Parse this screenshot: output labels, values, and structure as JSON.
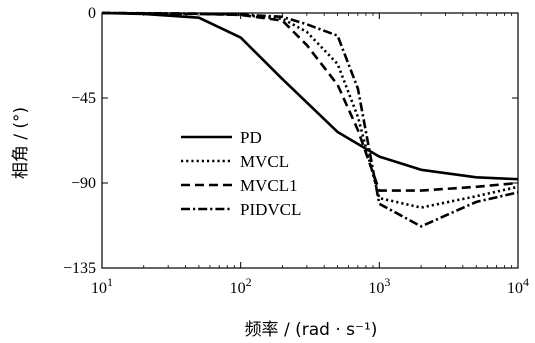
{
  "chart_data": {
    "type": "line",
    "title": "",
    "xlabel": "频率 / (rad · s⁻¹)",
    "ylabel": "相角 / (°)",
    "xscale": "log",
    "xlim": [
      10,
      10000
    ],
    "ylim": [
      -135,
      0
    ],
    "xticks": [
      {
        "value": 10,
        "base": "10",
        "exp": "1"
      },
      {
        "value": 100,
        "base": "10",
        "exp": "2"
      },
      {
        "value": 1000,
        "base": "10",
        "exp": "3"
      },
      {
        "value": 10000,
        "base": "10",
        "exp": "4"
      }
    ],
    "yticks": [
      {
        "value": 0,
        "label": "0"
      },
      {
        "value": -45,
        "label": "−45"
      },
      {
        "value": -90,
        "label": "−90"
      },
      {
        "value": -135,
        "label": "−135"
      }
    ],
    "grid": false,
    "legend_position": "center-left",
    "series": [
      {
        "name": "PD",
        "dash": "solid",
        "x": [
          10,
          20,
          50,
          100,
          200,
          500,
          1000,
          2000,
          5000,
          10000
        ],
        "y": [
          0,
          -0.5,
          -2.5,
          -13,
          -35,
          -63,
          -76,
          -83,
          -87,
          -88
        ]
      },
      {
        "name": "MVCL",
        "dash": "dot",
        "x": [
          10,
          50,
          100,
          200,
          300,
          500,
          700,
          1000,
          2000,
          5000,
          10000
        ],
        "y": [
          0,
          -0.5,
          -1,
          -3,
          -10,
          -27,
          -55,
          -98,
          -103,
          -97,
          -92
        ]
      },
      {
        "name": "MVCL1",
        "dash": "dash",
        "x": [
          10,
          50,
          100,
          200,
          300,
          500,
          700,
          1000,
          2000,
          5000,
          10000
        ],
        "y": [
          0,
          -0.5,
          -1,
          -4,
          -17,
          -38,
          -62,
          -94,
          -94,
          -92,
          -90
        ]
      },
      {
        "name": "PIDVCL",
        "dash": "dashdot",
        "x": [
          10,
          50,
          100,
          200,
          300,
          500,
          700,
          1000,
          2000,
          5000,
          10000
        ],
        "y": [
          0,
          -0.3,
          -0.8,
          -2,
          -6,
          -12,
          -40,
          -101,
          -113,
          -100,
          -95
        ]
      }
    ]
  }
}
